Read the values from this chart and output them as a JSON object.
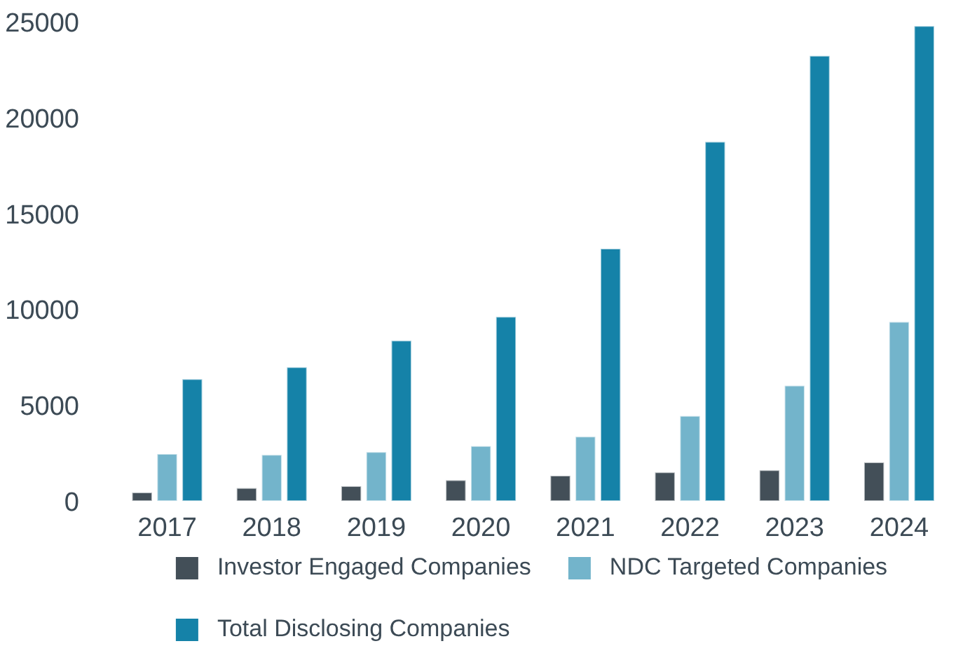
{
  "chart_data": {
    "type": "bar",
    "categories": [
      "2017",
      "2018",
      "2019",
      "2020",
      "2021",
      "2022",
      "2023",
      "2024"
    ],
    "series": [
      {
        "name": "Investor Engaged Companies",
        "color": "#434f58",
        "values": [
          440,
          670,
          770,
          1080,
          1320,
          1490,
          1600,
          2010
        ]
      },
      {
        "name": "NDC Targeted Companies",
        "color": "#73b4cb",
        "values": [
          2450,
          2400,
          2550,
          2860,
          3350,
          4430,
          6010,
          9340
        ]
      },
      {
        "name": "Total Disclosing Companies",
        "color": "#1582a8",
        "values": [
          6350,
          6970,
          8360,
          9600,
          13160,
          18730,
          23220,
          24770
        ]
      }
    ],
    "ylim": [
      0,
      25000
    ],
    "yticks": [
      0,
      5000,
      10000,
      15000,
      20000,
      25000
    ],
    "grid": false,
    "legend": "bottom"
  }
}
